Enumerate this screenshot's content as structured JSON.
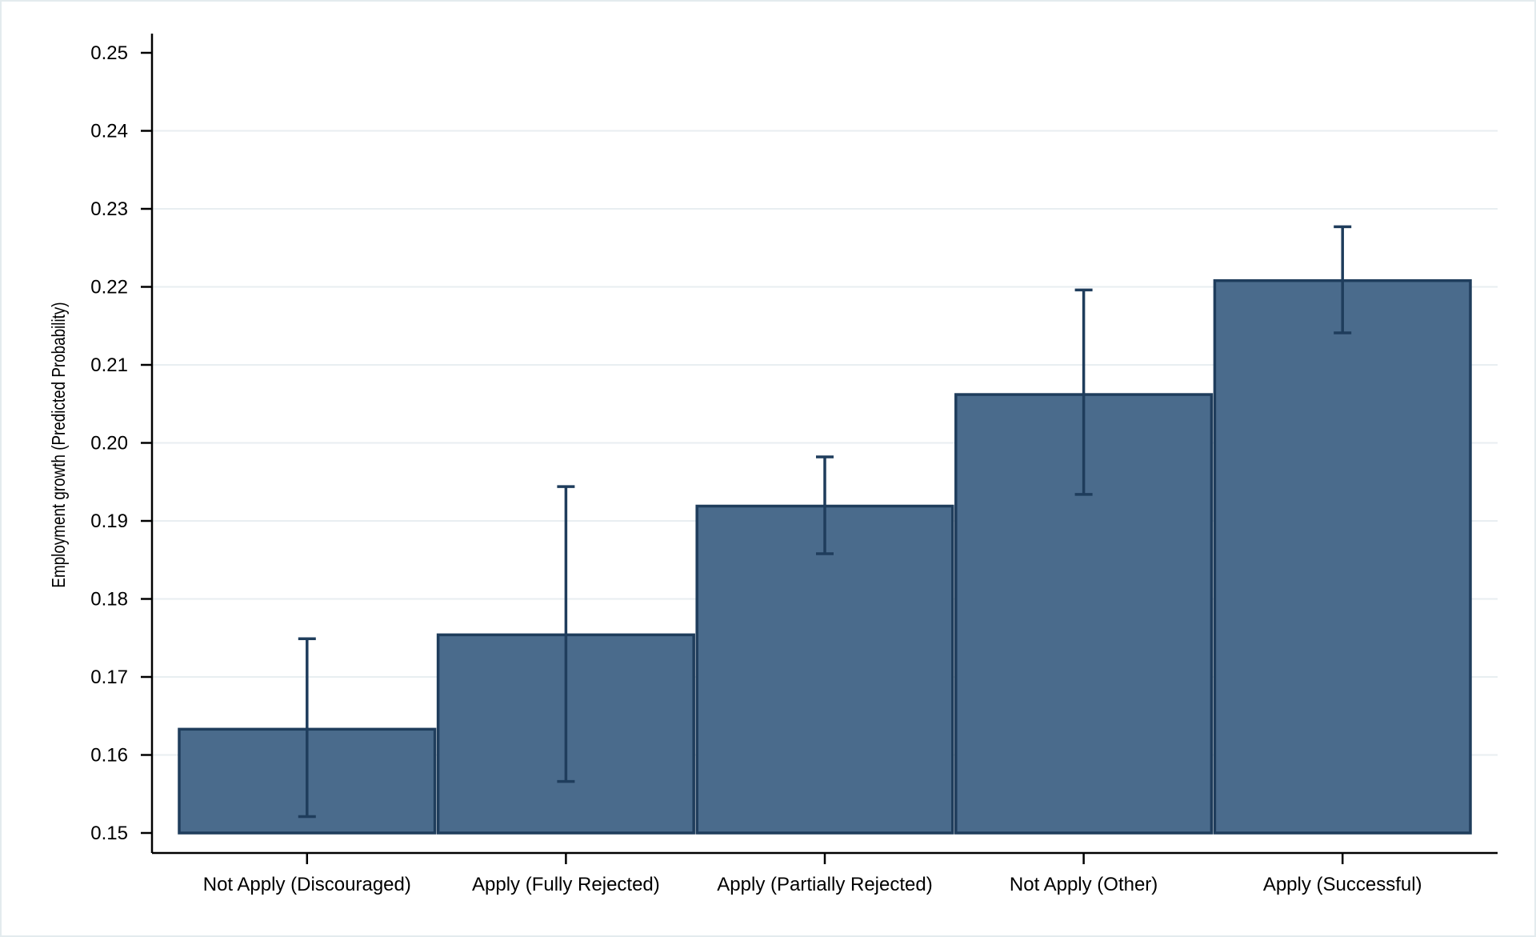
{
  "chart_data": {
    "type": "bar",
    "title": "",
    "xlabel": "",
    "ylabel": "Employment growth (Predicted Probability)",
    "categories": [
      "Not Apply (Discouraged)",
      "Apply (Fully Rejected)",
      "Apply (Partially Rejected)",
      "Not Apply (Other)",
      "Apply (Successful)"
    ],
    "values": [
      0.1633,
      0.1754,
      0.1919,
      0.2062,
      0.2208
    ],
    "error_low": [
      0.1521,
      0.1566,
      0.1858,
      0.1934,
      0.2141
    ],
    "error_high": [
      0.1749,
      0.1944,
      0.1982,
      0.2196,
      0.2277
    ],
    "ylim": [
      0.15,
      0.25
    ],
    "yticks": [
      0.15,
      0.16,
      0.17,
      0.18,
      0.19,
      0.2,
      0.21,
      0.22,
      0.23,
      0.24,
      0.25
    ],
    "ytick_labels": [
      "0.15",
      "0.16",
      "0.17",
      "0.18",
      "0.19",
      "0.20",
      "0.21",
      "0.22",
      "0.23",
      "0.24",
      "0.25"
    ],
    "grid": true,
    "legend": "none",
    "colors": {
      "bar_fill": "#4a6b8c",
      "bar_edge": "#1f3d5c",
      "error_bar": "#1f3d5c",
      "grid": "#e8eef1",
      "axis": "#000000"
    }
  }
}
